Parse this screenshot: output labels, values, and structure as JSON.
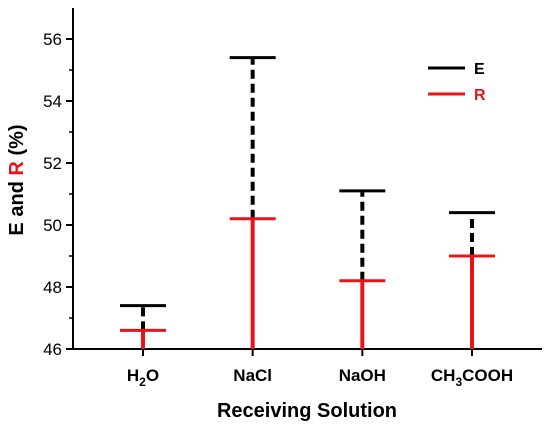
{
  "chart_data": {
    "type": "bar",
    "title": "",
    "xlabel": "Receiving Solution",
    "ylabel": {
      "part1": "E and ",
      "part2": "R",
      "part3": " (%)"
    },
    "categories": [
      {
        "main": "H",
        "sub": "2",
        "tail": "O"
      },
      {
        "main": "NaCl",
        "sub": "",
        "tail": ""
      },
      {
        "main": "NaOH",
        "sub": "",
        "tail": ""
      },
      {
        "main": "CH",
        "sub": "3",
        "tail": "COOH"
      }
    ],
    "series": [
      {
        "name": "E",
        "color": "#000000",
        "style": "dashed",
        "values": [
          47.4,
          55.4,
          51.1,
          50.4
        ]
      },
      {
        "name": "R",
        "color": "#e8141c",
        "style": "solid",
        "values": [
          46.6,
          50.2,
          48.2,
          49.0
        ]
      }
    ],
    "ylim": [
      46,
      57
    ],
    "yticks": [
      "46",
      "48",
      "50",
      "52",
      "54",
      "56"
    ],
    "ytick_values": [
      46,
      48,
      50,
      52,
      54,
      56
    ],
    "grid": false,
    "legend_position": "top-right",
    "colors": {
      "E": "#000000",
      "R": "#e8141c"
    }
  }
}
